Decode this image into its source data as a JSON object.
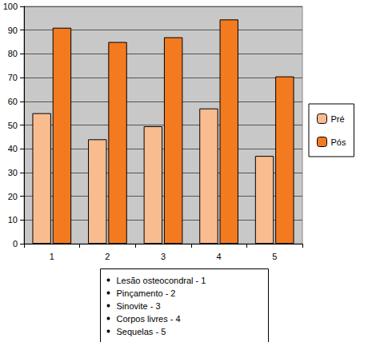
{
  "chart_data": {
    "type": "bar",
    "categories": [
      "1",
      "2",
      "3",
      "4",
      "5"
    ],
    "series": [
      {
        "name": "Pré",
        "color": "#f9bc8f",
        "values": [
          55,
          44,
          49.5,
          57,
          37
        ]
      },
      {
        "name": "Pós",
        "color": "#f47a20",
        "values": [
          91,
          85,
          87,
          94.5,
          70.5
        ]
      }
    ],
    "ylim": [
      0,
      100
    ],
    "yticks": [
      0,
      10,
      20,
      30,
      40,
      50,
      60,
      70,
      80,
      90,
      100
    ],
    "grid": true,
    "legend": "right",
    "annotations": [
      "Lesão osteocondral - 1",
      "Pinçamento - 2",
      "Sinovite - 3",
      "Corpos livres - 4",
      "Sequelas - 5"
    ]
  }
}
